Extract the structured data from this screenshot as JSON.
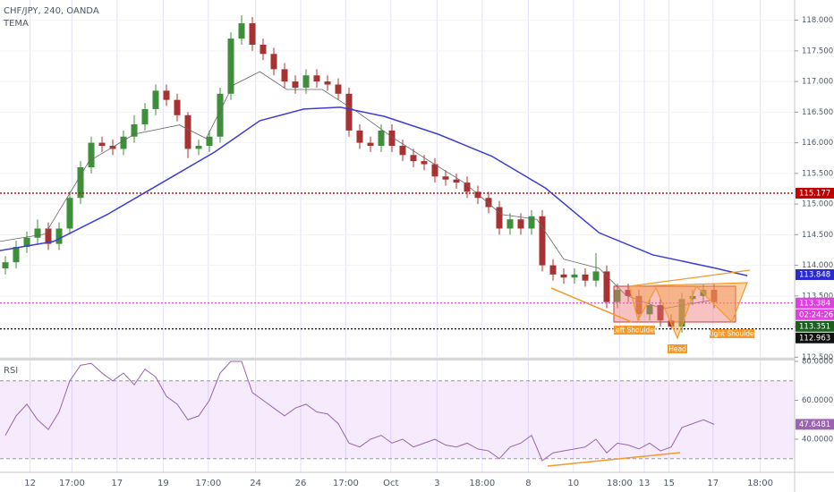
{
  "chart_data": [
    {
      "type": "candlestick",
      "title": "CHF/JPY, 240, OANDA",
      "xlim": [
        -0.5,
        73.5
      ],
      "ylim": [
        112.49,
        118.33
      ],
      "xticks": [
        {
          "value": 2.3,
          "label": "12"
        },
        {
          "value": 6.2,
          "label": "17:00"
        },
        {
          "value": 10.4,
          "label": "17"
        },
        {
          "value": 14.7,
          "label": "19"
        },
        {
          "value": 18.9,
          "label": "17:00"
        },
        {
          "value": 23.3,
          "label": "24"
        },
        {
          "value": 27.5,
          "label": "26"
        },
        {
          "value": 31.7,
          "label": "17:00"
        },
        {
          "value": 35.9,
          "label": "Oct"
        },
        {
          "value": 40.2,
          "label": "3"
        },
        {
          "value": 44.4,
          "label": "18:00"
        },
        {
          "value": 48.7,
          "label": "8"
        },
        {
          "value": 52.9,
          "label": "10"
        },
        {
          "value": 57.2,
          "label": "18:00"
        },
        {
          "value": 59.5,
          "label": "13"
        },
        {
          "value": 61.8,
          "label": "15"
        },
        {
          "value": 65.9,
          "label": "17"
        },
        {
          "value": 70.3,
          "label": "18:00"
        }
      ],
      "yticks": [
        {
          "value": 118,
          "label": "118.000"
        },
        {
          "value": 117.5,
          "label": "117.500"
        },
        {
          "value": 117,
          "label": "117.000"
        },
        {
          "value": 116.5,
          "label": "116.500"
        },
        {
          "value": 116,
          "label": "116.000"
        },
        {
          "value": 115.5,
          "label": "115.500"
        },
        {
          "value": 115,
          "label": "115.000"
        },
        {
          "value": 114.5,
          "label": "114.500"
        },
        {
          "value": 114,
          "label": "114.000"
        },
        {
          "value": 113.5,
          "label": "113.500"
        },
        {
          "value": 113,
          "label": "113.000"
        },
        {
          "value": 112.5,
          "label": "112.500"
        }
      ],
      "up_color": "#3d8f3a",
      "down_color": "#a83232",
      "open": [
        113.95,
        114.05,
        114.3,
        114.45,
        114.6,
        114.35,
        114.6,
        115.1,
        115.6,
        116.0,
        115.95,
        115.9,
        116.1,
        116.3,
        116.55,
        116.85,
        116.7,
        116.45,
        115.9,
        115.95,
        116.1,
        116.8,
        117.7,
        117.95,
        117.6,
        117.45,
        117.2,
        117.0,
        116.9,
        117.1,
        117.0,
        116.95,
        116.8,
        116.2,
        116.0,
        115.95,
        116.2,
        115.95,
        115.8,
        115.7,
        115.65,
        115.45,
        115.4,
        115.35,
        115.2,
        115.1,
        114.95,
        114.6,
        114.75,
        114.6,
        114.8,
        114.0,
        113.85,
        113.8,
        113.85,
        113.75,
        113.9,
        113.4,
        113.6,
        113.5,
        113.2,
        113.35,
        113.1,
        113.0,
        113.45,
        113.5,
        113.6
      ],
      "high": [
        114.15,
        114.4,
        114.55,
        114.75,
        114.7,
        114.7,
        115.2,
        115.7,
        116.1,
        116.1,
        116.05,
        116.2,
        116.45,
        116.65,
        116.95,
        116.95,
        116.8,
        116.5,
        116.05,
        116.2,
        116.9,
        117.8,
        118.08,
        118.05,
        117.7,
        117.55,
        117.3,
        117.1,
        117.2,
        117.2,
        117.1,
        117.05,
        116.9,
        116.3,
        116.1,
        116.3,
        116.3,
        116.05,
        115.9,
        115.8,
        115.75,
        115.55,
        115.5,
        115.45,
        115.3,
        115.2,
        115.05,
        114.85,
        114.85,
        114.9,
        114.9,
        114.1,
        113.95,
        113.95,
        113.95,
        114.2,
        114.0,
        113.7,
        113.7,
        113.6,
        113.45,
        113.45,
        113.2,
        113.55,
        113.6,
        113.7,
        113.7
      ],
      "low": [
        113.85,
        113.95,
        114.2,
        114.35,
        114.25,
        114.25,
        114.5,
        115.0,
        115.5,
        115.85,
        115.8,
        115.8,
        116.0,
        116.2,
        116.45,
        116.6,
        116.35,
        115.75,
        115.8,
        115.85,
        116.0,
        116.7,
        117.6,
        117.5,
        117.35,
        117.1,
        116.9,
        116.8,
        116.8,
        116.9,
        116.85,
        116.7,
        116.1,
        115.9,
        115.85,
        115.85,
        115.85,
        115.7,
        115.6,
        115.55,
        115.35,
        115.3,
        115.25,
        115.1,
        115.0,
        114.85,
        114.5,
        114.5,
        114.5,
        114.5,
        113.9,
        113.75,
        113.7,
        113.7,
        113.65,
        113.65,
        113.3,
        113.3,
        113.4,
        113.1,
        113.1,
        113.0,
        112.95,
        112.9,
        113.35,
        113.4,
        113.3
      ],
      "close": [
        114.05,
        114.3,
        114.45,
        114.6,
        114.35,
        114.6,
        115.1,
        115.6,
        116.0,
        115.95,
        115.9,
        116.1,
        116.3,
        116.55,
        116.85,
        116.7,
        116.45,
        115.9,
        115.95,
        116.1,
        116.8,
        117.7,
        117.95,
        117.6,
        117.45,
        117.2,
        117.0,
        116.9,
        117.1,
        117.0,
        116.95,
        116.8,
        116.2,
        116.0,
        115.95,
        116.2,
        115.95,
        115.8,
        115.7,
        115.65,
        115.45,
        115.4,
        115.35,
        115.2,
        115.1,
        114.95,
        114.6,
        114.75,
        114.6,
        114.8,
        114.0,
        113.85,
        113.8,
        113.85,
        113.75,
        113.9,
        113.4,
        113.6,
        113.5,
        113.2,
        113.35,
        113.1,
        113.0,
        113.45,
        113.5,
        113.6,
        113.4
      ],
      "series": [
        {
          "name": "TEMA",
          "color": "#666666",
          "x": [
            -0.5,
            3.7,
            7.8,
            12,
            16.2,
            18.7,
            21.2,
            23.7,
            26.2,
            29.5,
            32.8,
            36.2,
            39.5,
            42.8,
            46.2,
            49.5,
            52,
            55.3,
            57.8,
            61.2,
            63.7,
            66.2
          ],
          "values": [
            114.39,
            114.51,
            115.7,
            116.14,
            116.29,
            116.07,
            116.94,
            117.16,
            116.87,
            116.87,
            116.5,
            116.07,
            115.7,
            115.34,
            114.83,
            114.75,
            114.1,
            113.95,
            113.51,
            113.29,
            113.37,
            113.44
          ]
        },
        {
          "color": "#3d3dd6",
          "x": [
            -0.5,
            4.5,
            9.5,
            14.5,
            19.5,
            23.7,
            27.8,
            31.2,
            35.3,
            40.3,
            45.3,
            50.3,
            55.3,
            60.3,
            66.2,
            69.1
          ],
          "values": [
            114.24,
            114.39,
            114.83,
            115.34,
            115.85,
            116.36,
            116.55,
            116.58,
            116.43,
            116.14,
            115.78,
            115.26,
            114.53,
            114.17,
            113.95,
            113.83
          ]
        }
      ],
      "price_labels": [
        {
          "value": 115.177,
          "color": "#c00000",
          "line": true
        },
        {
          "value": 113.848,
          "color": "#2a2ad0",
          "line": false
        },
        {
          "value": 113.384,
          "color": "#e040e0",
          "line": true,
          "countdown": "02:24:26"
        },
        {
          "value": 113.351,
          "color": "#1b5e20",
          "line": false
        },
        {
          "value": 112.963,
          "color": "#111111",
          "line": true
        }
      ],
      "annotations": [
        "Left Shoulder",
        "Head",
        "Right Shoulder"
      ]
    },
    {
      "type": "line",
      "title": "RSI",
      "color": "#9b63b0",
      "ylim": [
        22.99,
        80.46
      ],
      "yticks": [
        {
          "value": 80,
          "label": "80.0000"
        },
        {
          "value": 60,
          "label": "60.0000"
        },
        {
          "value": 40,
          "label": "40.0000"
        }
      ],
      "band": [
        30,
        70
      ],
      "values": [
        42,
        52,
        58,
        50,
        45,
        54,
        70,
        78,
        79,
        74,
        70,
        74,
        68,
        76,
        72,
        62,
        58,
        50,
        52,
        60,
        74,
        80,
        80,
        64,
        60,
        56,
        52,
        56,
        58,
        54,
        53,
        48,
        38,
        36,
        40,
        42,
        38,
        40,
        36,
        38,
        40,
        37,
        36,
        38,
        35,
        34,
        30,
        36,
        38,
        42,
        29,
        33,
        34,
        35,
        36,
        40,
        33,
        38,
        37,
        35,
        38,
        34,
        36,
        46,
        48,
        50,
        47.6481
      ]
    }
  ]
}
